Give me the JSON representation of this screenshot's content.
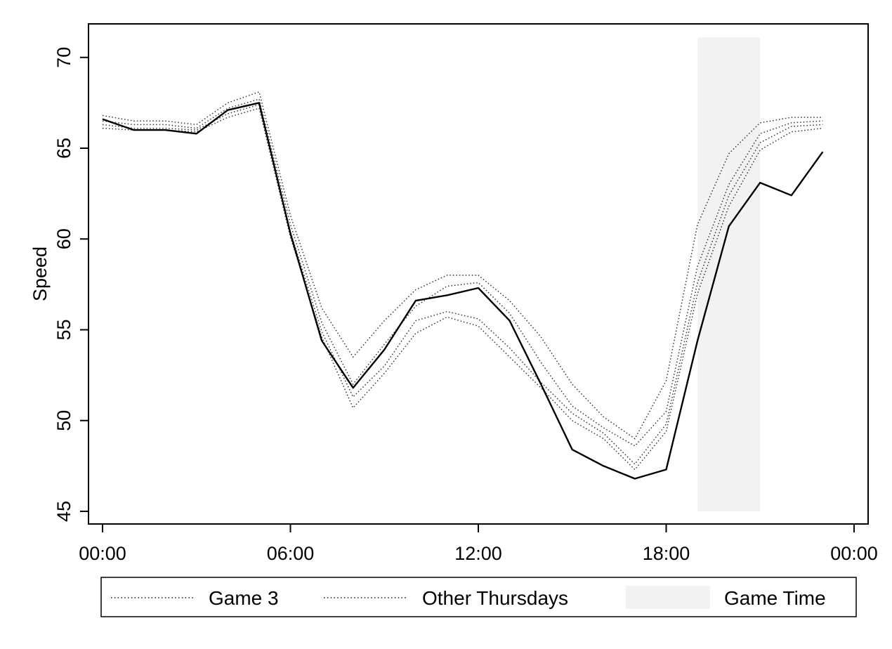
{
  "chart_data": {
    "type": "line",
    "title": "",
    "xlabel": "",
    "ylabel": "Speed",
    "x_tick_labels": [
      "00:00",
      "06:00",
      "12:00",
      "18:00",
      "00:00"
    ],
    "x_ticks": [
      0,
      6,
      12,
      18,
      24
    ],
    "xlim": [
      -0.5,
      24.5
    ],
    "y_ticks": [
      45,
      50,
      55,
      60,
      65,
      70
    ],
    "ylim": [
      44.3,
      71.9
    ],
    "grid": false,
    "legend_position": "bottom",
    "game_time": {
      "label": "Game Time",
      "x_start": 19,
      "x_end": 21,
      "y_start": 45,
      "y_end": 71.1,
      "color": "#f2f2f2"
    },
    "x": [
      0,
      1,
      2,
      3,
      4,
      5,
      6,
      7,
      8,
      9,
      10,
      11,
      12,
      13,
      14,
      15,
      16,
      17,
      18,
      19,
      20,
      21,
      22,
      23
    ],
    "series": [
      {
        "name": "Game 3",
        "style": "solid",
        "values": [
          66.6,
          66.0,
          66.0,
          65.8,
          67.1,
          67.5,
          60.3,
          54.4,
          51.8,
          53.9,
          56.6,
          56.9,
          57.3,
          55.5,
          52.0,
          48.4,
          47.5,
          46.8,
          47.3,
          54.4,
          60.7,
          63.1,
          62.4,
          64.8
        ]
      },
      {
        "name": "Other Thursdays",
        "style": "dotted",
        "values": [
          66.8,
          66.5,
          66.5,
          66.3,
          67.5,
          68.1,
          61.3,
          56.2,
          53.5,
          55.5,
          57.2,
          58.0,
          58.0,
          56.6,
          54.6,
          52.0,
          50.2,
          49.0,
          52.2,
          60.8,
          64.7,
          66.4,
          66.7,
          66.7
        ]
      },
      {
        "name": "Other Thursdays",
        "style": "dotted",
        "values": [
          66.5,
          66.3,
          66.3,
          66.1,
          67.2,
          67.7,
          60.8,
          55.4,
          52.0,
          54.2,
          56.3,
          57.4,
          57.6,
          55.9,
          53.2,
          50.8,
          49.6,
          48.6,
          50.5,
          58.5,
          63.0,
          65.8,
          66.4,
          66.5
        ]
      },
      {
        "name": "Other Thursdays",
        "style": "dotted",
        "values": [
          66.3,
          66.1,
          66.1,
          66.0,
          66.9,
          67.4,
          60.4,
          54.9,
          51.3,
          53.0,
          55.5,
          56.0,
          55.6,
          54.0,
          52.1,
          50.4,
          49.3,
          47.6,
          49.8,
          57.6,
          62.4,
          65.3,
          66.2,
          66.3
        ]
      },
      {
        "name": "Other Thursdays",
        "style": "dotted",
        "values": [
          66.1,
          66.0,
          66.0,
          65.9,
          66.7,
          67.2,
          60.1,
          54.6,
          50.7,
          52.6,
          54.8,
          55.7,
          55.2,
          53.5,
          51.8,
          50.0,
          49.0,
          47.3,
          49.4,
          57.0,
          61.8,
          64.9,
          65.9,
          66.1
        ]
      }
    ],
    "legend": [
      {
        "label": "Game 3",
        "marker": "dotted-line"
      },
      {
        "label": "Other Thursdays",
        "marker": "dotted-line"
      },
      {
        "label": "Game Time",
        "marker": "box"
      }
    ]
  }
}
